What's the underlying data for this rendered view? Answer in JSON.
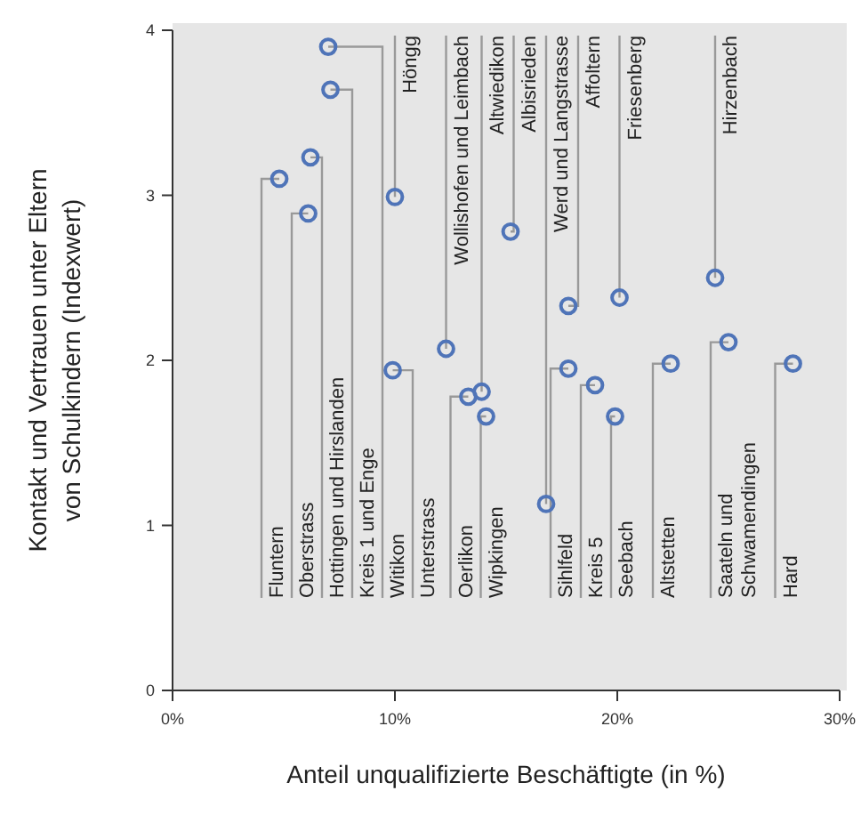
{
  "chart_data": {
    "type": "scatter",
    "xlabel": "Anteil unqualifizierte Beschäftigte (in %)",
    "ylabel": "Kontakt und Vertrauen unter Eltern\nvon Schulkindern (Indexwert)",
    "xlim": [
      0,
      30
    ],
    "xticks": [
      {
        "value": 0,
        "label": "0%"
      },
      {
        "value": 10,
        "label": "10%"
      },
      {
        "value": 20,
        "label": "20%"
      },
      {
        "value": 30,
        "label": "30%"
      }
    ],
    "ylim": [
      0,
      4
    ],
    "yticks": [
      0,
      1,
      2,
      3,
      4
    ],
    "grid": false,
    "marker": "circle",
    "series": [
      {
        "color": "#4f74b8",
        "x": [
          4.8,
          6.1,
          6.2,
          7.1,
          7.0,
          9.9,
          13.3,
          14.1,
          17.8,
          19.0,
          19.9,
          22.4,
          25.0,
          27.9,
          10.0,
          12.3,
          13.9,
          15.2,
          16.8,
          17.8,
          20.1,
          24.4
        ],
        "values": [
          3.1,
          2.89,
          3.23,
          3.64,
          3.9,
          1.94,
          1.78,
          1.66,
          1.95,
          1.85,
          1.66,
          1.98,
          2.11,
          1.98,
          2.99,
          2.07,
          1.81,
          2.78,
          1.13,
          2.33,
          2.38,
          2.5
        ]
      }
    ],
    "annotations": [
      {
        "text": "Fluntern",
        "x": 4.8,
        "y": 3.1
      },
      {
        "text": "Oberstrass",
        "x": 6.1,
        "y": 2.89
      },
      {
        "text": "Hottingen und Hirslanden",
        "x": 6.2,
        "y": 3.23
      },
      {
        "text": "Kreis 1 und Enge",
        "x": 7.1,
        "y": 3.64
      },
      {
        "text": "Witikon",
        "x": 7.0,
        "y": 3.9
      },
      {
        "text": "Unterstrass",
        "x": 9.9,
        "y": 1.94
      },
      {
        "text": "Oerlikon",
        "x": 13.3,
        "y": 1.78
      },
      {
        "text": "Wipkingen",
        "x": 14.1,
        "y": 1.66
      },
      {
        "text": "Sihlfeld",
        "x": 17.8,
        "y": 1.95
      },
      {
        "text": "Kreis 5",
        "x": 19.0,
        "y": 1.85
      },
      {
        "text": "Seebach",
        "x": 19.9,
        "y": 1.66
      },
      {
        "text": "Altstetten",
        "x": 22.4,
        "y": 1.98
      },
      {
        "text": "Saateln und\nSchwamendingen",
        "x": 25.0,
        "y": 2.11
      },
      {
        "text": "Hard",
        "x": 27.9,
        "y": 1.98
      },
      {
        "text": "Höngg",
        "x": 10.0,
        "y": 2.99
      },
      {
        "text": "Wollishofen und Leimbach",
        "x": 12.3,
        "y": 2.07
      },
      {
        "text": "Altwiedikon",
        "x": 13.9,
        "y": 1.81
      },
      {
        "text": "Albisrieden",
        "x": 15.2,
        "y": 2.78
      },
      {
        "text": "Werd und Langstrasse",
        "x": 16.8,
        "y": 1.13
      },
      {
        "text": "Affoltern",
        "x": 17.8,
        "y": 2.33
      },
      {
        "text": "Friesenberg",
        "x": 20.1,
        "y": 2.38
      },
      {
        "text": "Hirzenbach",
        "x": 24.4,
        "y": 2.5
      }
    ]
  }
}
